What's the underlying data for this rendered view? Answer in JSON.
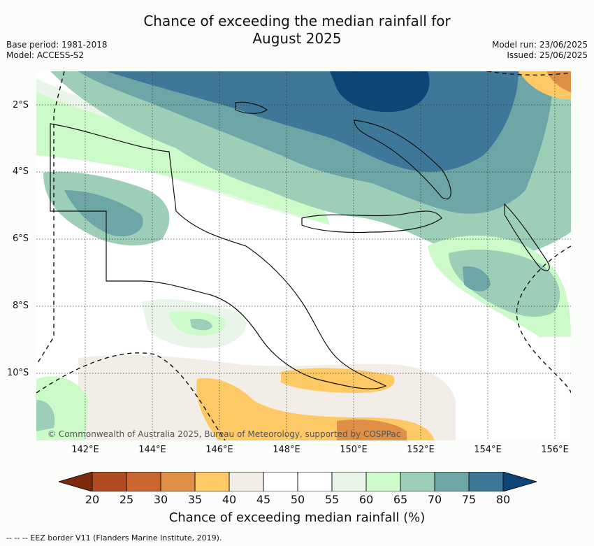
{
  "title": {
    "line1": "Chance of exceeding the median rainfall for",
    "line2": "August 2025"
  },
  "meta": {
    "base_period": "Base period: 1981-2018",
    "model": "Model: ACCESS-S2",
    "model_run": "Model run: 23/06/2025",
    "issued": "Issued: 25/06/2025"
  },
  "map": {
    "lat_labels": [
      "2°S",
      "4°S",
      "6°S",
      "8°S",
      "10°S"
    ],
    "lon_labels": [
      "142°E",
      "144°E",
      "146°E",
      "148°E",
      "150°E",
      "152°E",
      "154°E",
      "156°E"
    ],
    "copyright": "© Commonwealth of Australia 2025, Bureau of Meteorology, supported by COSPPac"
  },
  "colorbar": {
    "ticks": [
      "20",
      "25",
      "30",
      "35",
      "40",
      "45",
      "50",
      "55",
      "60",
      "65",
      "70",
      "75",
      "80"
    ],
    "label": "Chance of exceeding median rainfall (%)",
    "colors": {
      "lt20": "#7d2a0f",
      "c20_25": "#b04a20",
      "c25_30": "#cc6630",
      "c30_35": "#e08f46",
      "c35_40": "#fdc965",
      "c40_45": "#f3ede8",
      "c45_50": "#ffffff",
      "c50_55": "#ffffff",
      "c55_60": "#eaf5ea",
      "c60_65": "#ccfbc9",
      "c65_70": "#9dcfb8",
      "c70_75": "#6ea5a6",
      "c75_80": "#3f7798",
      "gt80": "#0d4577"
    }
  },
  "footnote": "-- -- -- EEZ border V11 (Flanders Marine Institute, 2019)."
}
